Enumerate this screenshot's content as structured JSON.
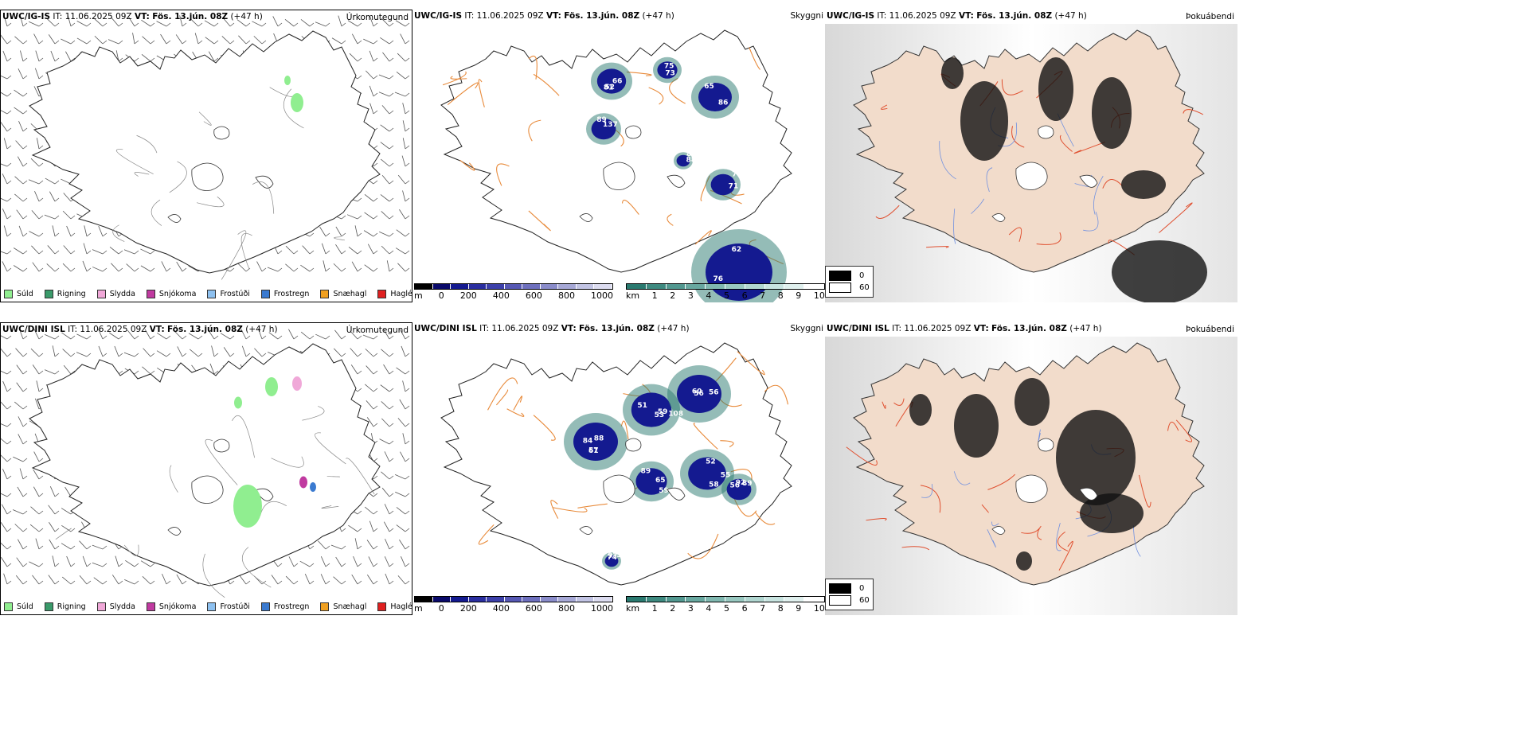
{
  "rows": [
    {
      "id": "ig",
      "header": {
        "model": "UWC/IG-IS",
        "it_label": "IT:",
        "it_value": "11.06.2025 09Z",
        "vt_label": "VT:",
        "vt_value": "Fös. 13.jún. 08Z",
        "lead": "(+47 h)"
      },
      "vis_labels": [
        "81",
        "75",
        "86",
        "89",
        "79",
        "85",
        "62",
        "66",
        "73",
        "65",
        "137",
        "71",
        "88",
        "76",
        "52"
      ]
    },
    {
      "id": "dini",
      "header": {
        "model": "UWC/DINI ISL",
        "it_label": "IT:",
        "it_value": "11.06.2025 09Z",
        "vt_label": "VT:",
        "vt_value": "Fös. 13.jún. 08Z",
        "lead": "(+47 h)"
      },
      "vis_labels": [
        "57",
        "59",
        "56",
        "55",
        "65",
        "56",
        "59",
        "84",
        "51",
        "56",
        "58",
        "59",
        "89",
        "97",
        "88",
        "108",
        "60",
        "52",
        "89",
        "92",
        "74",
        "61",
        "53"
      ]
    }
  ],
  "panel_titles": {
    "precip": "Úrkomutegund",
    "visibility": "Skyggni",
    "fog": "Þokuábendi"
  },
  "precip_legend": [
    {
      "label": "Súld",
      "color": "#90ee90"
    },
    {
      "label": "Rigning",
      "color": "#3a9a6a"
    },
    {
      "label": "Slydda",
      "color": "#f0a8d8"
    },
    {
      "label": "Snjókoma",
      "color": "#c03aa0"
    },
    {
      "label": "Frostúði",
      "color": "#8ec1f0"
    },
    {
      "label": "Frostregn",
      "color": "#3a7ad0"
    },
    {
      "label": "Snæhagl",
      "color": "#f0a020"
    },
    {
      "label": "Haglél",
      "color": "#e02020"
    }
  ],
  "ceiling_scale": {
    "unit": "m",
    "ticks": [
      "0",
      "200",
      "400",
      "600",
      "800",
      "1000"
    ],
    "colors": [
      "#000000",
      "#0a0a6a",
      "#141a90",
      "#2a2ea0",
      "#3c40aa",
      "#5658b4",
      "#6e70be",
      "#8a8cca",
      "#a6a8d6",
      "#c2c4e4",
      "#dcdcf0"
    ]
  },
  "vis_scale": {
    "unit": "km",
    "ticks": [
      "1",
      "2",
      "3",
      "4",
      "5",
      "6",
      "7",
      "8",
      "9",
      "10"
    ],
    "colors": [
      "#2a7a70",
      "#3e8a80",
      "#529890",
      "#68a8a0",
      "#80b8b0",
      "#98c8c0",
      "#b0d6d0",
      "#c8e4e0",
      "#e0f0ee",
      "#ffffff"
    ]
  },
  "fog_legend": [
    {
      "label": "0",
      "color": "#000000"
    },
    {
      "label": "60",
      "color": "#ffffff"
    }
  ]
}
